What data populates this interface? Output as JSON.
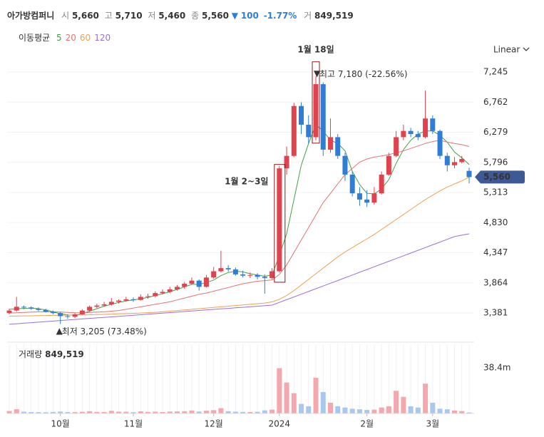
{
  "header": {
    "name": "아가방컴퍼니",
    "open_label": "시",
    "open": "5,660",
    "high_label": "고",
    "high": "5,710",
    "low_label": "저",
    "low": "5,460",
    "close_label": "종",
    "close": "5,560",
    "change": "100",
    "change_pct": "-1.77%",
    "volume_label": "거",
    "volume": "849,519"
  },
  "scale_mode": "Linear",
  "chart_data": {
    "type": "candlestick",
    "categories": [
      null,
      null,
      null,
      null,
      null,
      null,
      null,
      "10월",
      null,
      null,
      null,
      null,
      null,
      null,
      null,
      null,
      null,
      "11월",
      null,
      null,
      null,
      null,
      null,
      null,
      null,
      null,
      null,
      null,
      "12월",
      null,
      null,
      null,
      null,
      null,
      null,
      null,
      null,
      "2024",
      null,
      null,
      null,
      null,
      null,
      null,
      null,
      null,
      null,
      null,
      null,
      "2월",
      null,
      null,
      null,
      null,
      null,
      null,
      null,
      null,
      "3월",
      null,
      null,
      null,
      null,
      null
    ],
    "ohlc": [
      [
        3380,
        3450,
        3360,
        3420
      ],
      [
        3420,
        3640,
        3400,
        3480
      ],
      [
        3480,
        3500,
        3440,
        3470
      ],
      [
        3470,
        3490,
        3430,
        3450
      ],
      [
        3450,
        3470,
        3410,
        3430
      ],
      [
        3430,
        3450,
        3390,
        3400
      ],
      [
        3400,
        3420,
        3360,
        3380
      ],
      [
        3380,
        3400,
        3205,
        3330
      ],
      [
        3330,
        3360,
        3290,
        3320
      ],
      [
        3320,
        3380,
        3300,
        3360
      ],
      [
        3360,
        3440,
        3350,
        3420
      ],
      [
        3420,
        3500,
        3400,
        3480
      ],
      [
        3480,
        3530,
        3460,
        3500
      ],
      [
        3500,
        3560,
        3480,
        3520
      ],
      [
        3520,
        3620,
        3500,
        3560
      ],
      [
        3560,
        3600,
        3530,
        3580
      ],
      [
        3580,
        3640,
        3560,
        3600
      ],
      [
        3600,
        3630,
        3560,
        3590
      ],
      [
        3590,
        3680,
        3580,
        3640
      ],
      [
        3640,
        3690,
        3610,
        3650
      ],
      [
        3650,
        3730,
        3630,
        3700
      ],
      [
        3700,
        3760,
        3680,
        3720
      ],
      [
        3720,
        3800,
        3700,
        3760
      ],
      [
        3760,
        3830,
        3740,
        3800
      ],
      [
        3800,
        3880,
        3770,
        3850
      ],
      [
        3850,
        3950,
        3830,
        3900
      ],
      [
        3900,
        3920,
        3740,
        3800
      ],
      [
        3800,
        3990,
        3790,
        3950
      ],
      [
        3950,
        4120,
        3930,
        4050
      ],
      [
        4050,
        4380,
        4030,
        4100
      ],
      [
        4100,
        4150,
        4040,
        4080
      ],
      [
        4080,
        4110,
        3980,
        4000
      ],
      [
        4000,
        4060,
        3950,
        3980
      ],
      [
        3980,
        4030,
        3940,
        3990
      ],
      [
        3990,
        4020,
        3920,
        3960
      ],
      [
        3960,
        4000,
        3690,
        3940
      ],
      [
        3940,
        4100,
        3920,
        4050
      ],
      [
        4050,
        5740,
        4030,
        5700
      ],
      [
        5700,
        6050,
        5600,
        5900
      ],
      [
        5900,
        6750,
        5880,
        6700
      ],
      [
        6700,
        6760,
        6250,
        6400
      ],
      [
        6400,
        6550,
        6100,
        6200
      ],
      [
        6200,
        7180,
        6150,
        7050
      ],
      [
        7050,
        7080,
        5900,
        6000
      ],
      [
        6000,
        6500,
        5950,
        6200
      ],
      [
        6200,
        6250,
        5850,
        5900
      ],
      [
        5900,
        5950,
        5500,
        5600
      ],
      [
        5600,
        5650,
        5250,
        5300
      ],
      [
        5300,
        5400,
        5100,
        5200
      ],
      [
        5200,
        5350,
        5080,
        5150
      ],
      [
        5150,
        5400,
        5120,
        5300
      ],
      [
        5300,
        5650,
        5280,
        5600
      ],
      [
        5600,
        5950,
        5580,
        5900
      ],
      [
        5900,
        6300,
        5880,
        6200
      ],
      [
        6200,
        6400,
        6150,
        6300
      ],
      [
        6300,
        6350,
        6200,
        6250
      ],
      [
        6250,
        6300,
        6150,
        6200
      ],
      [
        6200,
        6950,
        6180,
        6500
      ],
      [
        6500,
        6550,
        6250,
        6300
      ],
      [
        6300,
        6320,
        5850,
        5900
      ],
      [
        5900,
        5950,
        5650,
        5750
      ],
      [
        5750,
        5880,
        5700,
        5800
      ],
      [
        5800,
        5900,
        5780,
        5850
      ],
      [
        5660,
        5710,
        5460,
        5560
      ]
    ],
    "up_color": "#e0424e",
    "down_color": "#2f7dd6",
    "ylim": [
      7428,
      3027
    ],
    "yticks": [
      {
        "value": 7245,
        "label": "7,245"
      },
      {
        "value": 6762,
        "label": "6,762"
      },
      {
        "value": 6279,
        "label": "6,279"
      },
      {
        "value": 5796,
        "label": "5,796"
      },
      {
        "value": 5313,
        "label": "5,313"
      },
      {
        "value": 4830,
        "label": "4,830"
      },
      {
        "value": 4347,
        "label": "4,347"
      },
      {
        "value": 3864,
        "label": "3,864"
      },
      {
        "value": 3381,
        "label": "3,381"
      }
    ],
    "grid": true,
    "last_price": {
      "value": 5560,
      "label": "5,560"
    },
    "ma_label": "이동평균",
    "ma_series": [
      {
        "name": "5",
        "color": "#43a047",
        "values": [
          3440,
          3450,
          3455,
          3460,
          3450,
          3430,
          3400,
          3370,
          3350,
          3345,
          3370,
          3410,
          3450,
          3490,
          3520,
          3550,
          3575,
          3590,
          3610,
          3630,
          3660,
          3690,
          3720,
          3760,
          3800,
          3840,
          3840,
          3870,
          3910,
          3980,
          4030,
          4050,
          4040,
          4010,
          3990,
          3970,
          3990,
          4300,
          4650,
          5200,
          5750,
          6100,
          6400,
          6300,
          6150,
          6100,
          5980,
          5650,
          5440,
          5300,
          5290,
          5370,
          5520,
          5780,
          6000,
          6150,
          6250,
          6300,
          6300,
          6230,
          6120,
          5960,
          5870,
          5760
        ]
      },
      {
        "name": "20",
        "color": "#e57373",
        "values": [
          3380,
          3385,
          3390,
          3395,
          3400,
          3400,
          3400,
          3395,
          3390,
          3385,
          3385,
          3390,
          3395,
          3400,
          3410,
          3420,
          3440,
          3460,
          3480,
          3500,
          3520,
          3540,
          3560,
          3590,
          3620,
          3650,
          3680,
          3700,
          3730,
          3760,
          3790,
          3820,
          3850,
          3870,
          3890,
          3900,
          3910,
          4000,
          4150,
          4350,
          4550,
          4750,
          4950,
          5150,
          5300,
          5450,
          5600,
          5700,
          5800,
          5850,
          5880,
          5900,
          5920,
          5950,
          5980,
          6020,
          6060,
          6100,
          6130,
          6150,
          6120,
          6100,
          6080,
          6050
        ]
      },
      {
        "name": "60",
        "color": "#f0a050",
        "values": [
          3330,
          3332,
          3334,
          3336,
          3338,
          3340,
          3342,
          3344,
          3346,
          3348,
          3350,
          3352,
          3355,
          3358,
          3362,
          3366,
          3370,
          3375,
          3380,
          3386,
          3392,
          3400,
          3410,
          3420,
          3430,
          3440,
          3450,
          3460,
          3470,
          3480,
          3490,
          3500,
          3510,
          3520,
          3530,
          3540,
          3560,
          3600,
          3660,
          3740,
          3830,
          3920,
          4010,
          4100,
          4190,
          4280,
          4360,
          4430,
          4500,
          4570,
          4640,
          4720,
          4800,
          4880,
          4960,
          5040,
          5120,
          5200,
          5270,
          5340,
          5400,
          5450,
          5500,
          5560
        ]
      },
      {
        "name": "120",
        "color": "#9c6fd6",
        "values": [
          3200,
          3209,
          3217,
          3226,
          3234,
          3243,
          3251,
          3260,
          3268,
          3277,
          3285,
          3294,
          3302,
          3311,
          3319,
          3328,
          3336,
          3345,
          3353,
          3362,
          3370,
          3379,
          3387,
          3396,
          3404,
          3413,
          3421,
          3430,
          3438,
          3447,
          3455,
          3464,
          3472,
          3481,
          3489,
          3498,
          3507,
          3550,
          3594,
          3638,
          3682,
          3726,
          3770,
          3814,
          3858,
          3902,
          3946,
          3990,
          4034,
          4078,
          4122,
          4166,
          4210,
          4254,
          4298,
          4342,
          4386,
          4430,
          4474,
          4518,
          4562,
          4606,
          4628,
          4650
        ]
      }
    ],
    "annotations": {
      "high_date": "1월 18일",
      "gap_dates": "1월 2~3일",
      "high_label": "최고 7,180 (-22.56%)",
      "low_label": "최저 3,205 (73.48%)"
    },
    "volume_title": "거래량",
    "volume_last": "849,519",
    "volume": [
      2100000,
      3500000,
      1500000,
      1200000,
      1100000,
      1000000,
      1300000,
      1600000,
      1200000,
      1100000,
      1400000,
      1900000,
      1300000,
      1200000,
      2200000,
      1500000,
      1400000,
      1100000,
      1800000,
      1300000,
      1500000,
      1200000,
      1600000,
      1700000,
      1900000,
      2500000,
      1600000,
      2300000,
      2800000,
      4500000,
      1900000,
      1500000,
      1300000,
      1200000,
      1400000,
      2600000,
      3200000,
      38000000,
      26000000,
      17000000,
      8000000,
      6000000,
      30000000,
      18000000,
      9000000,
      6000000,
      5000000,
      4000000,
      3500000,
      3000000,
      3200000,
      5000000,
      6000000,
      19000000,
      14000000,
      6000000,
      5000000,
      25000000,
      9000000,
      4000000,
      3500000,
      2500000,
      2000000,
      849519
    ],
    "volume_colors": [
      "#f4a7ad",
      "#a8c8ef"
    ],
    "volume_ylim": [
      0,
      58000000
    ],
    "volume_yticks": [
      {
        "value": 38400000,
        "label": "38.4m"
      }
    ]
  }
}
